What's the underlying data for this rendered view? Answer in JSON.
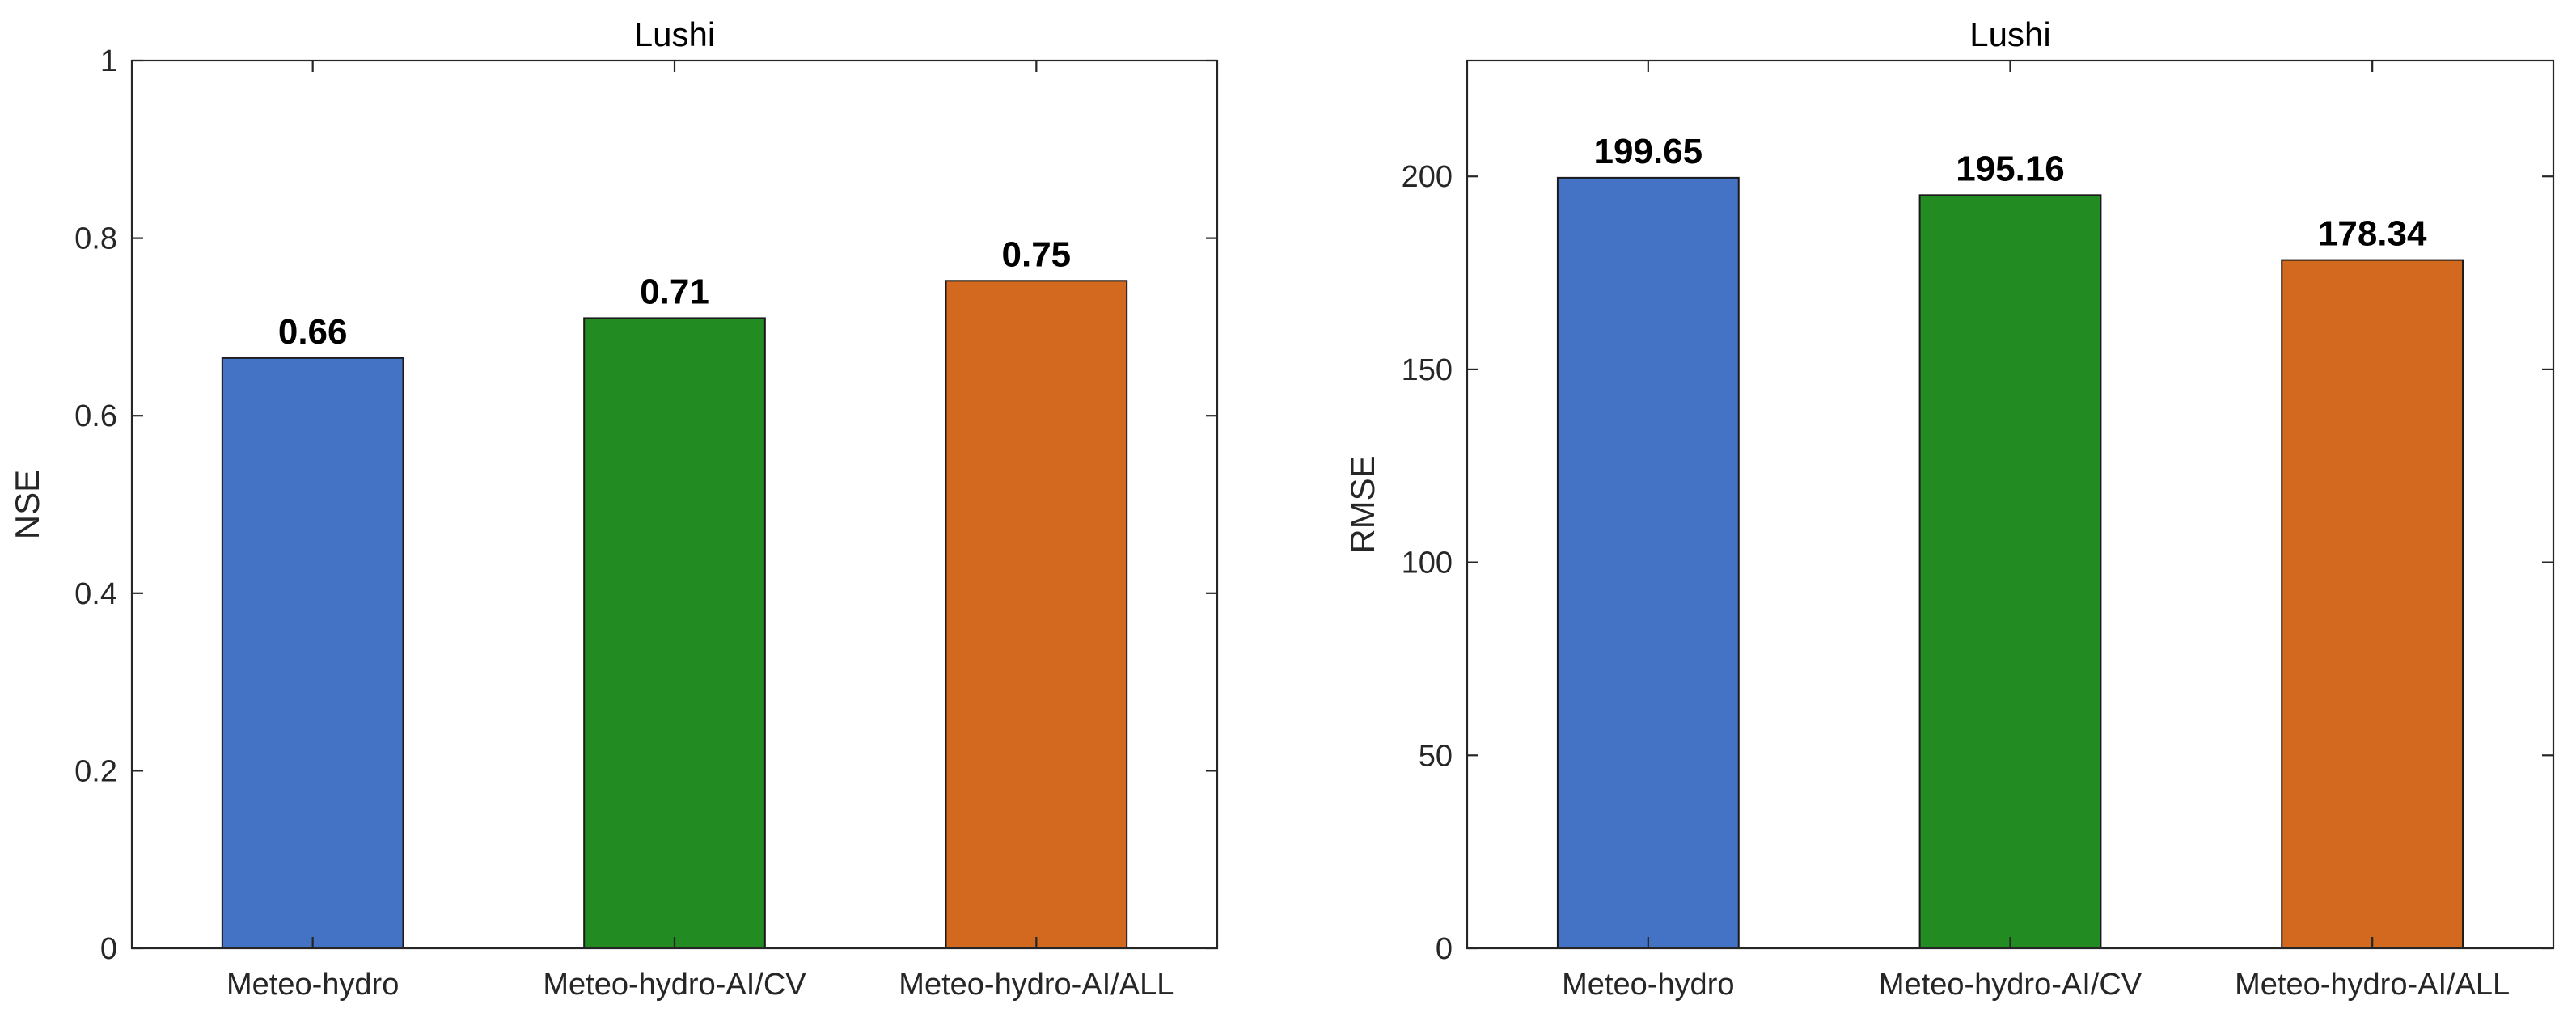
{
  "chart_data": [
    {
      "type": "bar",
      "title": "Lushi",
      "xlabel": "",
      "ylabel": "NSE",
      "categories": [
        "Meteo-hydro",
        "Meteo-hydro-AI/CV",
        "Meteo-hydro-AI/ALL"
      ],
      "values": [
        0.665,
        0.71,
        0.752
      ],
      "value_labels": [
        "0.66",
        "0.71",
        "0.75"
      ],
      "colors": [
        "#4472c4",
        "#228b22",
        "#d2691e"
      ],
      "ylim": [
        0,
        1
      ],
      "yticks": [
        0,
        0.2,
        0.4,
        0.6,
        0.8,
        1
      ],
      "ytick_labels": [
        "0",
        "0.2",
        "0.4",
        "0.6",
        "0.8",
        "1"
      ],
      "grid": false
    },
    {
      "type": "bar",
      "title": "Lushi",
      "xlabel": "",
      "ylabel": "RMSE",
      "categories": [
        "Meteo-hydro",
        "Meteo-hydro-AI/CV",
        "Meteo-hydro-AI/ALL"
      ],
      "values": [
        199.65,
        195.16,
        178.34
      ],
      "value_labels": [
        "199.65",
        "195.16",
        "178.34"
      ],
      "colors": [
        "#4472c4",
        "#228b22",
        "#d2691e"
      ],
      "ylim": [
        0,
        230
      ],
      "yticks": [
        0,
        50,
        100,
        150,
        200
      ],
      "ytick_labels": [
        "0",
        "50",
        "100",
        "150",
        "200"
      ],
      "grid": false
    }
  ]
}
